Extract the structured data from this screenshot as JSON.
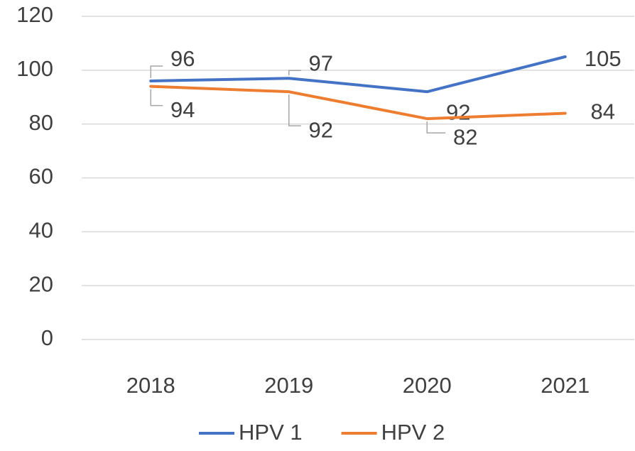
{
  "chart_data": {
    "type": "line",
    "categories": [
      "2018",
      "2019",
      "2020",
      "2021"
    ],
    "series": [
      {
        "name": "HPV 1",
        "color": "#4472c4",
        "values": [
          96,
          97,
          92,
          105
        ]
      },
      {
        "name": "HPV 2",
        "color": "#ed7d31",
        "values": [
          94,
          92,
          82,
          84
        ]
      }
    ],
    "ylim": [
      0,
      120
    ],
    "yticks": [
      0,
      20,
      40,
      60,
      80,
      100,
      120
    ],
    "grid": true,
    "legend": "bottom"
  }
}
